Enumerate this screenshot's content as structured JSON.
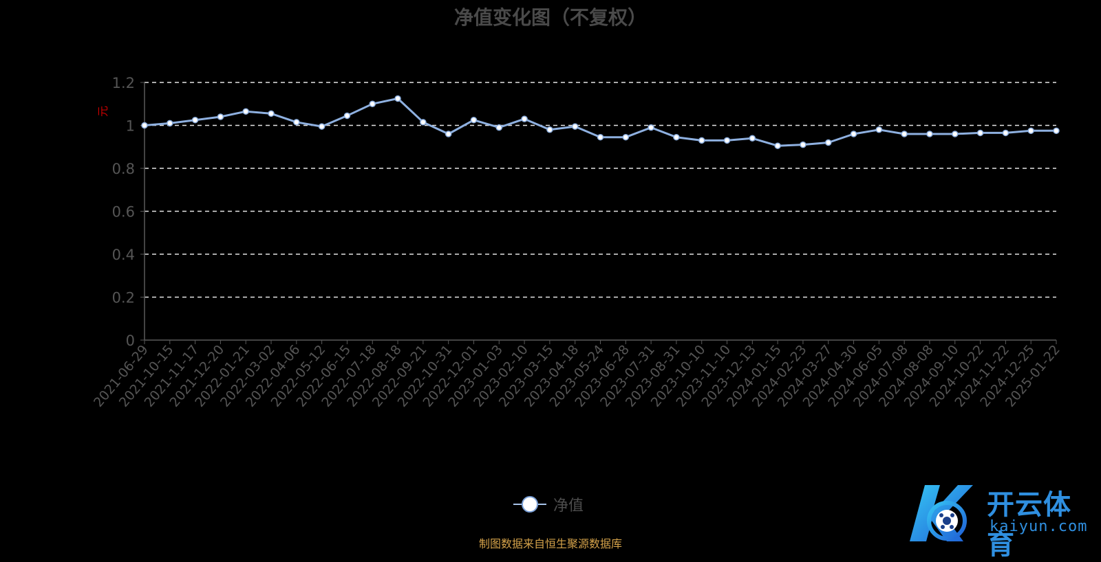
{
  "chart_data": {
    "type": "line",
    "title": "净值变化图（不复权）",
    "ylabel": "元",
    "xlabel": "",
    "ylim": [
      0,
      1.2
    ],
    "yticks": [
      "0",
      "0.2",
      "0.4",
      "0.6",
      "0.8",
      "1",
      "1.2"
    ],
    "grid": true,
    "legend_position": "bottom",
    "categories": [
      "2021-06-29",
      "2021-10-15",
      "2021-11-17",
      "2021-12-20",
      "2022-01-21",
      "2022-03-02",
      "2022-04-06",
      "2022-05-12",
      "2022-06-15",
      "2022-07-18",
      "2022-08-18",
      "2022-09-21",
      "2022-10-31",
      "2022-12-01",
      "2023-01-03",
      "2023-02-10",
      "2023-03-15",
      "2023-04-18",
      "2023-05-24",
      "2023-06-28",
      "2023-07-31",
      "2023-08-31",
      "2023-10-10",
      "2023-11-10",
      "2023-12-13",
      "2024-01-15",
      "2024-02-23",
      "2024-03-27",
      "2024-04-30",
      "2024-06-05",
      "2024-07-08",
      "2024-08-08",
      "2024-09-10",
      "2024-10-22",
      "2024-11-22",
      "2024-12-25",
      "2025-01-22"
    ],
    "series": [
      {
        "name": "净值",
        "color": "#8eb0e0",
        "values": [
          1.0,
          1.01,
          1.025,
          1.04,
          1.065,
          1.055,
          1.015,
          0.995,
          1.045,
          1.1,
          1.125,
          1.015,
          0.96,
          1.025,
          0.99,
          1.03,
          0.98,
          0.995,
          0.945,
          0.945,
          0.99,
          0.945,
          0.93,
          0.93,
          0.94,
          0.905,
          0.91,
          0.92,
          0.96,
          0.98,
          0.96,
          0.96,
          0.96,
          0.965,
          0.965,
          0.975,
          0.975
        ]
      }
    ]
  },
  "legend": {
    "label": "净值"
  },
  "footer": {
    "source": "制图数据来自恒生聚源数据库"
  },
  "watermark": {
    "cn": "开云体育",
    "en": "kaiyun.com"
  }
}
